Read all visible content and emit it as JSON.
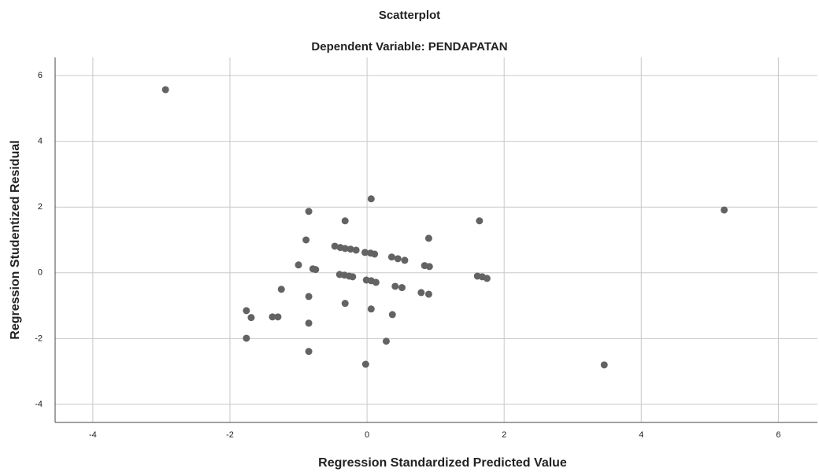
{
  "chart_data": {
    "type": "scatter",
    "title": "Scatterplot",
    "subtitle": "Dependent Variable: PENDAPATAN",
    "x_label": "Regression Standardized Predicted Value",
    "y_label": "Regression Studentized Residual",
    "color": "#636363",
    "grid": true,
    "xlim": [
      -4.55,
      6.57
    ],
    "ylim": [
      -4.55,
      6.55
    ],
    "xticks": [
      -4,
      -2,
      0,
      2,
      4,
      6
    ],
    "yticks": [
      -4,
      -2,
      0,
      2,
      4,
      6
    ],
    "x": [
      -2.94,
      5.21,
      3.46,
      0.06,
      -0.85,
      -0.32,
      1.64,
      0.9,
      -0.89,
      -0.47,
      -0.39,
      -0.32,
      -0.24,
      -0.16,
      -0.03,
      0.05,
      0.11,
      0.36,
      0.45,
      0.55,
      0.84,
      0.91,
      -1.0,
      -0.79,
      -0.75,
      -0.4,
      -0.33,
      -0.26,
      -0.21,
      -0.01,
      0.06,
      0.13,
      0.41,
      0.51,
      0.79,
      0.9,
      1.61,
      1.68,
      1.75,
      -1.25,
      -0.85,
      -0.32,
      0.06,
      0.37,
      -1.76,
      -1.69,
      -1.38,
      -1.3,
      -0.85,
      -1.76,
      -0.85,
      0.28,
      -0.02
    ],
    "values": [
      5.57,
      1.91,
      -2.8,
      2.25,
      1.87,
      1.58,
      1.58,
      1.05,
      1.0,
      0.81,
      0.77,
      0.74,
      0.72,
      0.69,
      0.62,
      0.6,
      0.57,
      0.48,
      0.43,
      0.38,
      0.22,
      0.19,
      0.24,
      0.12,
      0.1,
      -0.05,
      -0.07,
      -0.1,
      -0.12,
      -0.22,
      -0.24,
      -0.29,
      -0.41,
      -0.45,
      -0.6,
      -0.65,
      -0.1,
      -0.12,
      -0.17,
      -0.5,
      -0.72,
      -0.93,
      -1.1,
      -1.27,
      -1.15,
      -1.36,
      -1.34,
      -1.34,
      -1.53,
      -1.99,
      -2.39,
      -2.08,
      -2.78
    ]
  }
}
